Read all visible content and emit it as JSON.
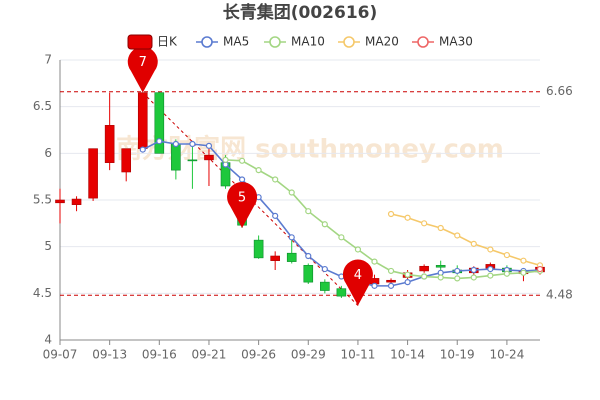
{
  "chart_data": {
    "type": "candlestick",
    "title": "长青集团(002616)",
    "watermark": "南方财富网 southmoney.com",
    "categories": [
      "09-07",
      null,
      null,
      "09-13",
      null,
      null,
      "09-16",
      null,
      null,
      "09-21",
      null,
      null,
      "09-26",
      null,
      null,
      "09-29",
      null,
      null,
      "10-11",
      null,
      null,
      "10-14",
      null,
      null,
      "10-19",
      null,
      null,
      "10-24",
      null,
      null
    ],
    "candles": {
      "name": "日K",
      "up_color": "#e60000",
      "down_color": "#1ec83c",
      "open": [
        5.47,
        5.45,
        5.52,
        5.9,
        5.8,
        6.05,
        6.65,
        6.1,
        5.93,
        5.93,
        5.9,
        5.48,
        5.07,
        4.85,
        4.93,
        4.8,
        4.62,
        4.55,
        4.55,
        4.6,
        4.62,
        4.67,
        4.74,
        4.8,
        4.75,
        4.72,
        4.77,
        4.77,
        4.71,
        4.73
      ],
      "close": [
        5.5,
        5.51,
        6.05,
        6.3,
        6.05,
        6.65,
        6.0,
        5.82,
        5.92,
        5.98,
        5.65,
        5.23,
        4.88,
        4.9,
        4.84,
        4.62,
        4.53,
        4.47,
        4.66,
        4.66,
        4.64,
        4.72,
        4.79,
        4.78,
        4.72,
        4.77,
        4.81,
        4.73,
        4.74,
        4.78
      ],
      "high": [
        5.62,
        5.54,
        6.05,
        6.65,
        6.05,
        6.65,
        6.66,
        6.15,
        6.1,
        6.05,
        5.98,
        5.5,
        5.12,
        4.95,
        5.1,
        4.82,
        4.65,
        4.58,
        4.67,
        4.7,
        4.66,
        4.75,
        4.81,
        4.85,
        4.8,
        4.79,
        4.83,
        4.8,
        4.76,
        4.8
      ],
      "low": [
        5.25,
        5.38,
        5.49,
        5.82,
        5.7,
        6.03,
        6.0,
        5.72,
        5.62,
        5.65,
        5.62,
        5.2,
        4.87,
        4.75,
        4.82,
        4.6,
        4.5,
        4.45,
        4.37,
        4.56,
        4.6,
        4.65,
        4.72,
        4.75,
        4.7,
        4.7,
        4.75,
        4.7,
        4.63,
        4.7
      ]
    },
    "series": [
      {
        "name": "MA5",
        "color": "#5b7bd0",
        "values": [
          null,
          null,
          null,
          null,
          null,
          6.04,
          6.13,
          6.1,
          6.1,
          6.08,
          5.88,
          5.72,
          5.53,
          5.33,
          5.1,
          4.9,
          4.76,
          4.68,
          4.62,
          4.58,
          4.58,
          4.62,
          4.68,
          4.72,
          4.74,
          4.75,
          4.76,
          4.75,
          4.74,
          4.75
        ]
      },
      {
        "name": "MA10",
        "color": "#a3d683",
        "values": [
          null,
          null,
          null,
          null,
          null,
          null,
          null,
          null,
          null,
          null,
          5.93,
          5.92,
          5.82,
          5.72,
          5.58,
          5.38,
          5.24,
          5.1,
          4.97,
          4.84,
          4.74,
          4.7,
          4.68,
          4.67,
          4.66,
          4.67,
          4.69,
          4.71,
          4.72,
          4.74
        ]
      },
      {
        "name": "MA20",
        "color": "#f5c86a",
        "values": [
          null,
          null,
          null,
          null,
          null,
          null,
          null,
          null,
          null,
          null,
          null,
          null,
          null,
          null,
          null,
          null,
          null,
          null,
          null,
          null,
          5.35,
          5.31,
          5.25,
          5.2,
          5.12,
          5.03,
          4.97,
          4.91,
          4.85,
          4.8
        ]
      },
      {
        "name": "MA30",
        "color": "#ee6666",
        "values": [
          null,
          null,
          null,
          null,
          null,
          null,
          null,
          null,
          null,
          null,
          null,
          null,
          null,
          null,
          null,
          null,
          null,
          null,
          null,
          null,
          null,
          null,
          null,
          null,
          null,
          null,
          null,
          null,
          null,
          4.76
        ]
      }
    ],
    "reference_lines": [
      6.66,
      4.48
    ],
    "annotations": [
      {
        "text": "7",
        "candle": 5,
        "at": "high"
      },
      {
        "text": "5",
        "candle": 11,
        "at": "low"
      },
      {
        "text": "4",
        "candle": 18,
        "at": "low"
      }
    ],
    "ylim": [
      4,
      7
    ],
    "yticks": [
      4,
      4.5,
      5,
      5.5,
      6,
      6.5,
      7
    ],
    "grid": true
  }
}
